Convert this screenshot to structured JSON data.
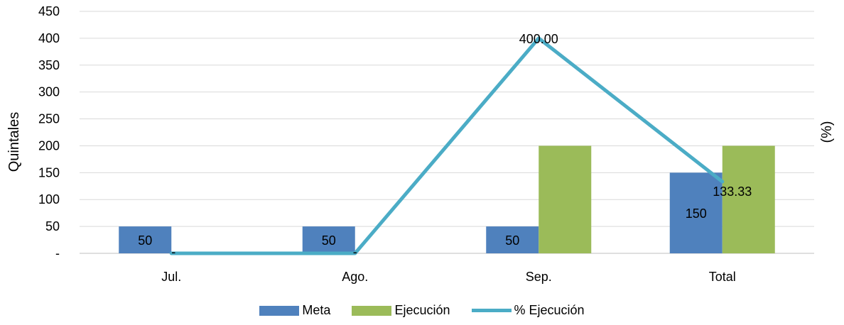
{
  "chart_data": {
    "type": "bar",
    "categories": [
      "Jul.",
      "Ago.",
      "Sep.",
      "Total"
    ],
    "series": [
      {
        "name": "Meta",
        "kind": "bar",
        "color": "#4F81BD",
        "values": [
          50,
          50,
          50,
          150
        ],
        "labels": [
          "50",
          "50",
          "50",
          "150"
        ]
      },
      {
        "name": "Ejecución",
        "kind": "bar",
        "color": "#9BBB59",
        "values": [
          0,
          0,
          200,
          200
        ],
        "labels": [
          "-",
          "",
          "",
          ""
        ]
      },
      {
        "name": "% Ejecución",
        "kind": "line",
        "color": "#4BACC6",
        "values": [
          0,
          0,
          400,
          133.33
        ],
        "labels": [
          "",
          "-",
          "400.00",
          "133.33"
        ]
      }
    ],
    "ylabel": "Quintales",
    "y2label": "(%)",
    "ylim": [
      0,
      450
    ],
    "yticks": [
      0,
      50,
      100,
      150,
      200,
      250,
      300,
      350,
      400,
      450
    ],
    "ytick_labels": [
      "-",
      "50",
      "100",
      "150",
      "200",
      "250",
      "300",
      "350",
      "400",
      "450"
    ],
    "grid": true,
    "legend": "bottom"
  }
}
